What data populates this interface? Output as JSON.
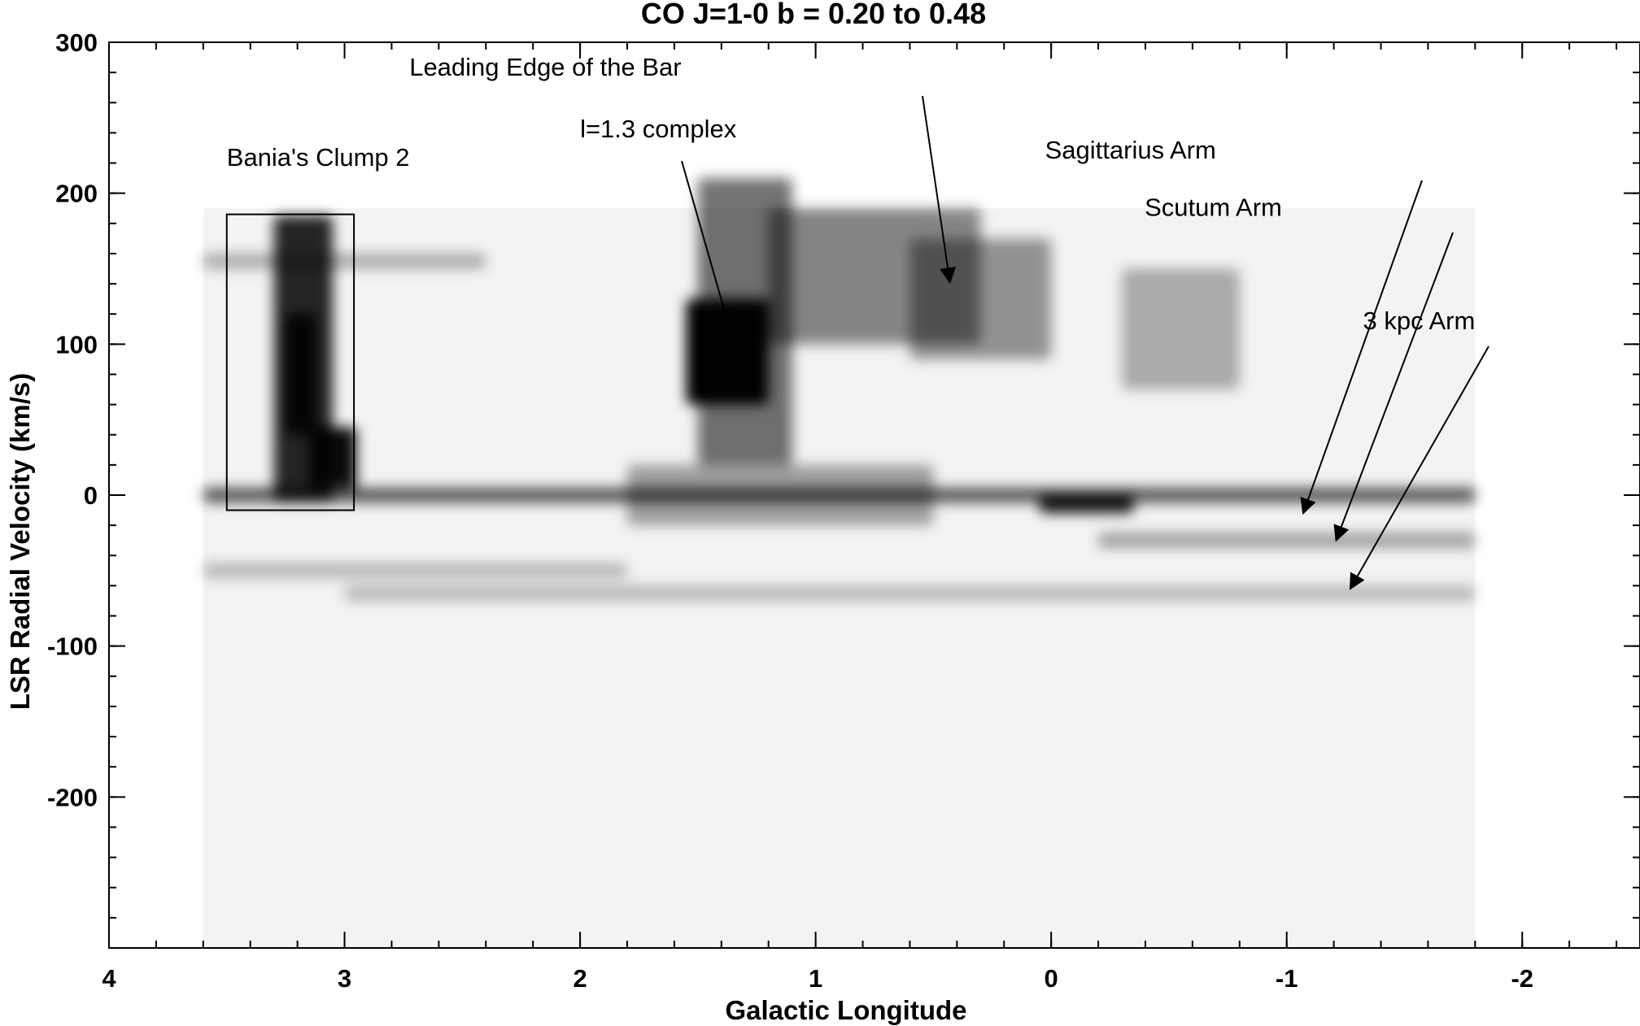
{
  "chart_data": {
    "type": "heatmap",
    "title": "CO J=1-0   b = 0.20 to 0.48",
    "xlabel": "Galactic Longitude",
    "ylabel": "LSR Radial Velocity (km/s)",
    "xlim": [
      4,
      -2.5
    ],
    "ylim": [
      -300,
      300
    ],
    "x_ticks": [
      4,
      3,
      2,
      1,
      0,
      -1,
      -2
    ],
    "x_tick_labels": [
      "4",
      "3",
      "2",
      "1",
      "0",
      "-1",
      "-2"
    ],
    "y_ticks": [
      300,
      200,
      100,
      0,
      -100,
      -200
    ],
    "y_tick_labels": [
      "300",
      "200",
      "100",
      "0",
      "-100",
      "-200"
    ],
    "colormap": "grayscale (white = low, black = high emission)",
    "colors": {
      "background": "#f3f3f3",
      "emission": "#000000"
    },
    "survey_extent": {
      "l": [
        3.6,
        -1.8
      ],
      "v": [
        -300,
        190
      ]
    },
    "emission_features": [
      {
        "l": [
          3.3,
          3.05
        ],
        "v": [
          -5,
          185
        ],
        "intensity": 0.85
      },
      {
        "l": [
          3.25,
          3.12
        ],
        "v": [
          40,
          120
        ],
        "intensity": 0.9
      },
      {
        "l": [
          3.15,
          2.95
        ],
        "v": [
          5,
          45
        ],
        "intensity": 0.95
      },
      {
        "l": [
          1.55,
          1.2
        ],
        "v": [
          60,
          130
        ],
        "intensity": 1.0
      },
      {
        "l": [
          1.5,
          1.1
        ],
        "v": [
          20,
          210
        ],
        "intensity": 0.55
      },
      {
        "l": [
          1.2,
          0.3
        ],
        "v": [
          100,
          190
        ],
        "intensity": 0.45
      },
      {
        "l": [
          0.6,
          0.0
        ],
        "v": [
          90,
          170
        ],
        "intensity": 0.4
      },
      {
        "l": [
          -0.3,
          -0.8
        ],
        "v": [
          70,
          150
        ],
        "intensity": 0.3
      },
      {
        "l": [
          3.6,
          -1.8
        ],
        "v": [
          -5,
          5
        ],
        "intensity": 0.65
      },
      {
        "l": [
          0.05,
          -0.35
        ],
        "v": [
          -12,
          0
        ],
        "intensity": 0.9
      },
      {
        "l": [
          3.6,
          2.4
        ],
        "v": [
          150,
          160
        ],
        "intensity": 0.3
      },
      {
        "l": [
          3.6,
          1.8
        ],
        "v": [
          -55,
          -45
        ],
        "intensity": 0.25
      },
      {
        "l": [
          3.0,
          -1.8
        ],
        "v": [
          -70,
          -60
        ],
        "intensity": 0.25
      },
      {
        "l": [
          -0.2,
          -1.8
        ],
        "v": [
          -35,
          -25
        ],
        "intensity": 0.35
      },
      {
        "l": [
          1.8,
          0.5
        ],
        "v": [
          -20,
          20
        ],
        "intensity": 0.35
      }
    ],
    "box": {
      "label": "Bania's Clump 2",
      "l": [
        3.5,
        2.96
      ],
      "v": [
        -10,
        186
      ]
    },
    "annotations": [
      {
        "text": "Bania's Clump 2",
        "x": 3.5,
        "y": 218
      },
      {
        "text": "l=1.3 complex",
        "x": 2.0,
        "y": 237,
        "arrow_to": {
          "x": 1.37,
          "y": 113
        }
      },
      {
        "text": "Leading Edge of the Bar",
        "x": 1.57,
        "y": 278,
        "arrow_to": {
          "x": 0.43,
          "y": 141
        }
      },
      {
        "text": "Sagittarius Arm",
        "x": -0.7,
        "y": 223,
        "arrow_to": {
          "x": -1.07,
          "y": -12
        }
      },
      {
        "text": "Scutum Arm",
        "x": -0.98,
        "y": 185,
        "arrow_to": {
          "x": -1.21,
          "y": -30
        }
      },
      {
        "text": "3 kpc Arm",
        "x": -1.8,
        "y": 110,
        "arrow_to": {
          "x": -1.27,
          "y": -62
        }
      }
    ]
  }
}
